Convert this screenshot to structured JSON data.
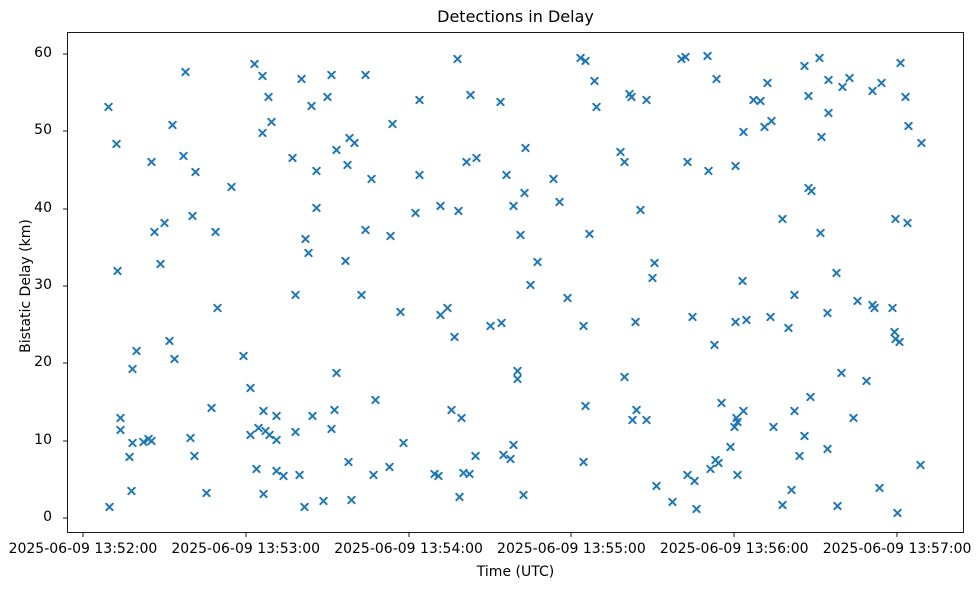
{
  "figure": {
    "title": "Detections in Delay",
    "xlabel": "Time (UTC)",
    "ylabel": "Bistatic Delay (km)"
  },
  "chart_data": {
    "type": "scatter",
    "title": "Detections in Delay",
    "xlabel": "Time (UTC)",
    "ylabel": "Bistatic Delay (km)",
    "marker": "x",
    "marker_color": "#1f77b4",
    "grid": false,
    "legend": null,
    "x_unit": "seconds after 2025-06-09 13:52:00 UTC",
    "x_tick_labels": [
      "2025-06-09 13:52:00",
      "2025-06-09 13:53:00",
      "2025-06-09 13:54:00",
      "2025-06-09 13:55:00",
      "2025-06-09 13:56:00",
      "2025-06-09 13:57:00"
    ],
    "x_ticks_seconds": [
      0,
      60,
      120,
      180,
      240,
      300
    ],
    "y_ticks": [
      0,
      10,
      20,
      30,
      40,
      50,
      60
    ],
    "xlim_seconds": [
      -5.5,
      324.3
    ],
    "ylim": [
      -1.8,
      62.7
    ],
    "points": [
      [
        9.4,
        53.2
      ],
      [
        37.8,
        57.7
      ],
      [
        63.4,
        58.7
      ],
      [
        66,
        57.1
      ],
      [
        68.4,
        54.5
      ],
      [
        12.5,
        48.4
      ],
      [
        33.1,
        50.8
      ],
      [
        69.6,
        51.2
      ],
      [
        66.2,
        49.8
      ],
      [
        25.1,
        46
      ],
      [
        37.1,
        46.8
      ],
      [
        41.3,
        44.7
      ],
      [
        54.9,
        42.8
      ],
      [
        40.4,
        39
      ],
      [
        30,
        38.2
      ],
      [
        26.3,
        37
      ],
      [
        49,
        37
      ],
      [
        12.9,
        32
      ],
      [
        28.6,
        32.8
      ],
      [
        49.7,
        27.2
      ],
      [
        31.9,
        22.9
      ],
      [
        19.6,
        21.6
      ],
      [
        33.9,
        20.6
      ],
      [
        59.2,
        21
      ],
      [
        18.1,
        19.3
      ],
      [
        61.9,
        16.8
      ],
      [
        47.3,
        14.2
      ],
      [
        14,
        13
      ],
      [
        13.7,
        11.4
      ],
      [
        66.6,
        13.8
      ],
      [
        71.4,
        13.2
      ],
      [
        61.8,
        10.8
      ],
      [
        64.7,
        11.6
      ],
      [
        67.2,
        11.3
      ],
      [
        68.9,
        10.8
      ],
      [
        71.4,
        10.1
      ],
      [
        18.4,
        9.7
      ],
      [
        22.5,
        9.9
      ],
      [
        24.3,
        10.2
      ],
      [
        25.4,
        10
      ],
      [
        39.8,
        10.3
      ],
      [
        17.2,
        7.9
      ],
      [
        41.1,
        8.1
      ],
      [
        64,
        6.4
      ],
      [
        71.2,
        6.1
      ],
      [
        74,
        5.5
      ],
      [
        18,
        3.5
      ],
      [
        45.7,
        3.2
      ],
      [
        66.4,
        3.1
      ],
      [
        9.7,
        1.5
      ],
      [
        137.9,
        59.3
      ],
      [
        91.5,
        57.3
      ],
      [
        104,
        57.3
      ],
      [
        80.6,
        56.8
      ],
      [
        90,
        54.4
      ],
      [
        84.1,
        53.3
      ],
      [
        124.1,
        54.1
      ],
      [
        142.9,
        54.7
      ],
      [
        154,
        53.8
      ],
      [
        113.9,
        51
      ],
      [
        98.3,
        49.1
      ],
      [
        100.2,
        48.5
      ],
      [
        93.6,
        47.6
      ],
      [
        77.2,
        46.6
      ],
      [
        97.4,
        45.6
      ],
      [
        85.9,
        44.9
      ],
      [
        106.4,
        43.8
      ],
      [
        124,
        44.3
      ],
      [
        141.2,
        46.1
      ],
      [
        145.2,
        46.6
      ],
      [
        155.9,
        44.3
      ],
      [
        86,
        40.1
      ],
      [
        122.5,
        39.4
      ],
      [
        131.7,
        40.3
      ],
      [
        138.5,
        39.7
      ],
      [
        158.7,
        40.3
      ],
      [
        104,
        37.2
      ],
      [
        113.3,
        36.5
      ],
      [
        82.2,
        36.1
      ],
      [
        83.2,
        34.3
      ],
      [
        96.7,
        33.3
      ],
      [
        78.3,
        28.9
      ],
      [
        102.7,
        28.8
      ],
      [
        116.9,
        26.7
      ],
      [
        131.6,
        26.3
      ],
      [
        134.4,
        27.2
      ],
      [
        150.1,
        24.9
      ],
      [
        154.4,
        25.2
      ],
      [
        137,
        23.4
      ],
      [
        93.6,
        18.7
      ],
      [
        107.7,
        15.3
      ],
      [
        92.8,
        14
      ],
      [
        84.7,
        13.2
      ],
      [
        91.6,
        11.5
      ],
      [
        78.4,
        11.2
      ],
      [
        135.7,
        14
      ],
      [
        139.4,
        12.9
      ],
      [
        118,
        9.7
      ],
      [
        144.7,
        8.1
      ],
      [
        155.1,
        8.2
      ],
      [
        157.6,
        7.7
      ],
      [
        158.7,
        9.5
      ],
      [
        97.9,
        7.2
      ],
      [
        112.8,
        6.6
      ],
      [
        107.2,
        5.6
      ],
      [
        79.8,
        5.6
      ],
      [
        129.7,
        5.7
      ],
      [
        130.9,
        5.4
      ],
      [
        140.3,
        5.8
      ],
      [
        142.4,
        5.7
      ],
      [
        138.9,
        2.7
      ],
      [
        88.5,
        2.2
      ],
      [
        81.6,
        1.5
      ],
      [
        99.1,
        2.3
      ],
      [
        183.2,
        59.5
      ],
      [
        185.1,
        59.1
      ],
      [
        220.4,
        59.4
      ],
      [
        222.1,
        59.6
      ],
      [
        230.2,
        59.8
      ],
      [
        188.6,
        56.5
      ],
      [
        233.5,
        56.8
      ],
      [
        201.5,
        54.8
      ],
      [
        202.3,
        54.5
      ],
      [
        207.5,
        54
      ],
      [
        189.3,
        53.1
      ],
      [
        243.5,
        49.9
      ],
      [
        163,
        47.8
      ],
      [
        198.1,
        47.3
      ],
      [
        199.4,
        46
      ],
      [
        222.8,
        46.1
      ],
      [
        230.6,
        44.9
      ],
      [
        240.3,
        45.5
      ],
      [
        173.5,
        43.9
      ],
      [
        162.9,
        42
      ],
      [
        175.7,
        40.9
      ],
      [
        205.4,
        39.8
      ],
      [
        186.6,
        36.7
      ],
      [
        161.3,
        36.6
      ],
      [
        167.5,
        33.1
      ],
      [
        210.8,
        33
      ],
      [
        209.7,
        31.1
      ],
      [
        165,
        30.1
      ],
      [
        178.4,
        28.4
      ],
      [
        184.4,
        24.8
      ],
      [
        203.8,
        25.4
      ],
      [
        224.5,
        26
      ],
      [
        240.4,
        25.3
      ],
      [
        244.5,
        25.6
      ],
      [
        232.7,
        22.4
      ],
      [
        160.3,
        19
      ],
      [
        160.3,
        18
      ],
      [
        199.7,
        18.3
      ],
      [
        185.1,
        14.5
      ],
      [
        204,
        14
      ],
      [
        202.6,
        12.7
      ],
      [
        207.6,
        12.7
      ],
      [
        235.3,
        14.9
      ],
      [
        243.5,
        13.9
      ],
      [
        240.7,
        12.9
      ],
      [
        241.3,
        12.4
      ],
      [
        240.1,
        11.8
      ],
      [
        238.6,
        9.2
      ],
      [
        184.4,
        7.3
      ],
      [
        233,
        7.5
      ],
      [
        234.1,
        7.1
      ],
      [
        231.1,
        6.3
      ],
      [
        222.8,
        5.6
      ],
      [
        225.5,
        4.8
      ],
      [
        211.2,
        4.1
      ],
      [
        241.2,
        5.6
      ],
      [
        162.5,
        3
      ],
      [
        217.1,
        2.1
      ],
      [
        226.2,
        1.2
      ],
      [
        271.6,
        59.5
      ],
      [
        265.9,
        58.4
      ],
      [
        301.1,
        58.8
      ],
      [
        252.4,
        56.3
      ],
      [
        274.8,
        56.7
      ],
      [
        282.3,
        56.9
      ],
      [
        279.8,
        55.7
      ],
      [
        294.4,
        56.3
      ],
      [
        290.8,
        55.2
      ],
      [
        247,
        54.1
      ],
      [
        249.5,
        53.9
      ],
      [
        267.5,
        54.6
      ],
      [
        303.2,
        54.5
      ],
      [
        274.8,
        52.4
      ],
      [
        251,
        50.5
      ],
      [
        253.7,
        51.4
      ],
      [
        304.4,
        50.7
      ],
      [
        309.1,
        48.5
      ],
      [
        272.2,
        49.3
      ],
      [
        267.4,
        42.7
      ],
      [
        268.3,
        42.3
      ],
      [
        257.8,
        38.7
      ],
      [
        271.7,
        36.9
      ],
      [
        299.3,
        38.7
      ],
      [
        304,
        38.2
      ],
      [
        277.6,
        31.7
      ],
      [
        243.1,
        30.6
      ],
      [
        262.1,
        28.8
      ],
      [
        285.4,
        28.1
      ],
      [
        290.8,
        27.5
      ],
      [
        291.6,
        27.2
      ],
      [
        298.2,
        27.2
      ],
      [
        274.5,
        26.5
      ],
      [
        253.5,
        26
      ],
      [
        260,
        24.6
      ],
      [
        298.9,
        24.1
      ],
      [
        299.4,
        23.1
      ],
      [
        301,
        22.8
      ],
      [
        279.6,
        18.8
      ],
      [
        288.8,
        17.7
      ],
      [
        268,
        15.6
      ],
      [
        262.1,
        13.9
      ],
      [
        254.5,
        11.8
      ],
      [
        284.1,
        12.9
      ],
      [
        266,
        10.6
      ],
      [
        274.2,
        9
      ],
      [
        263.9,
        8.1
      ],
      [
        308.8,
        6.9
      ],
      [
        261,
        3.6
      ],
      [
        293.6,
        3.9
      ],
      [
        257.8,
        1.7
      ],
      [
        277.9,
        1.6
      ],
      [
        300,
        0.65
      ]
    ]
  }
}
